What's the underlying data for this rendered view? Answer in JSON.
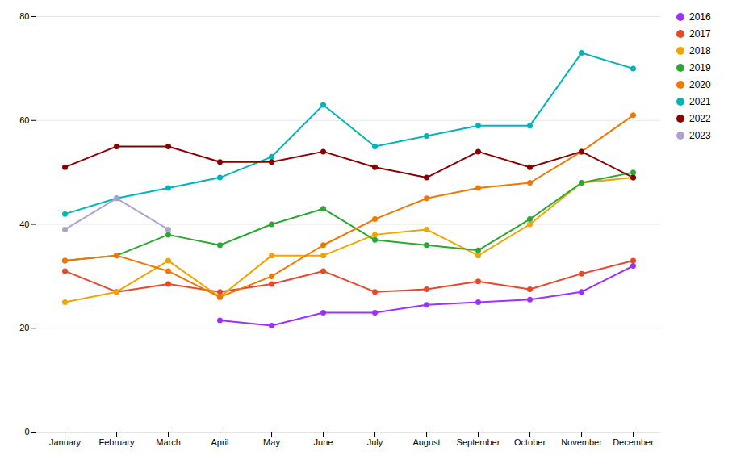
{
  "chart_data": {
    "type": "line",
    "categories": [
      "January",
      "February",
      "March",
      "April",
      "May",
      "June",
      "July",
      "August",
      "September",
      "October",
      "November",
      "December"
    ],
    "series": [
      {
        "name": "2016",
        "color": "#9b30ff",
        "values": [
          null,
          null,
          null,
          21.5,
          20.5,
          23,
          23,
          24.5,
          25,
          25.5,
          27,
          32
        ]
      },
      {
        "name": "2017",
        "color": "#e8472a",
        "values": [
          31,
          27,
          28.5,
          27,
          28.5,
          31,
          27,
          27.5,
          29,
          27.5,
          30.5,
          33
        ]
      },
      {
        "name": "2018",
        "color": "#f0a500",
        "values": [
          25,
          27,
          33,
          26,
          34,
          34,
          38,
          39,
          34,
          40,
          48,
          49
        ]
      },
      {
        "name": "2019",
        "color": "#2ca832",
        "values": [
          33,
          34,
          38,
          36,
          40,
          43,
          37,
          36,
          35,
          41,
          48,
          50
        ]
      },
      {
        "name": "2020",
        "color": "#f07800",
        "values": [
          33,
          34,
          31,
          26,
          30,
          36,
          41,
          45,
          47,
          48,
          54,
          61
        ]
      },
      {
        "name": "2021",
        "color": "#00b5b8",
        "values": [
          42,
          45,
          47,
          49,
          53,
          63,
          55,
          57,
          59,
          59,
          73,
          70
        ]
      },
      {
        "name": "2022",
        "color": "#8b0000",
        "values": [
          51,
          55,
          55,
          52,
          52,
          54,
          51,
          49,
          54,
          51,
          54,
          49
        ]
      },
      {
        "name": "2023",
        "color": "#b0a0d0",
        "values": [
          39,
          45,
          39,
          null,
          null,
          null,
          null,
          null,
          null,
          null,
          null,
          null
        ]
      }
    ],
    "ylim": [
      0,
      80
    ],
    "yticks": [
      0,
      20,
      40,
      60,
      80
    ],
    "grid": true,
    "legend": "right",
    "marker": "circle"
  }
}
